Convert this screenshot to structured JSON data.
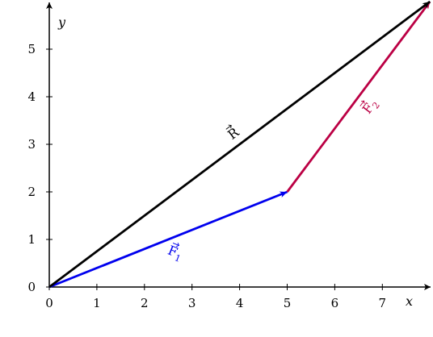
{
  "diagram": {
    "axes": {
      "x_label": "x",
      "y_label": "y",
      "x_ticks": [
        0,
        1,
        2,
        3,
        4,
        5,
        6,
        7
      ],
      "y_ticks": [
        0,
        1,
        2,
        3,
        4,
        5
      ],
      "x_range": [
        0,
        8
      ],
      "y_range": [
        0,
        6
      ]
    },
    "vectors": [
      {
        "id": "f1",
        "label": "F",
        "subscript": "1",
        "from": [
          0,
          0
        ],
        "to": [
          5,
          2
        ],
        "color": "#0000ee"
      },
      {
        "id": "f2",
        "label": "F",
        "subscript": "2",
        "from": [
          5,
          2
        ],
        "to": [
          8,
          6
        ],
        "color": "#bb0044"
      },
      {
        "id": "r",
        "label": "R",
        "subscript": "",
        "from": [
          0,
          0
        ],
        "to": [
          8,
          6
        ],
        "color": "#000000"
      }
    ]
  }
}
